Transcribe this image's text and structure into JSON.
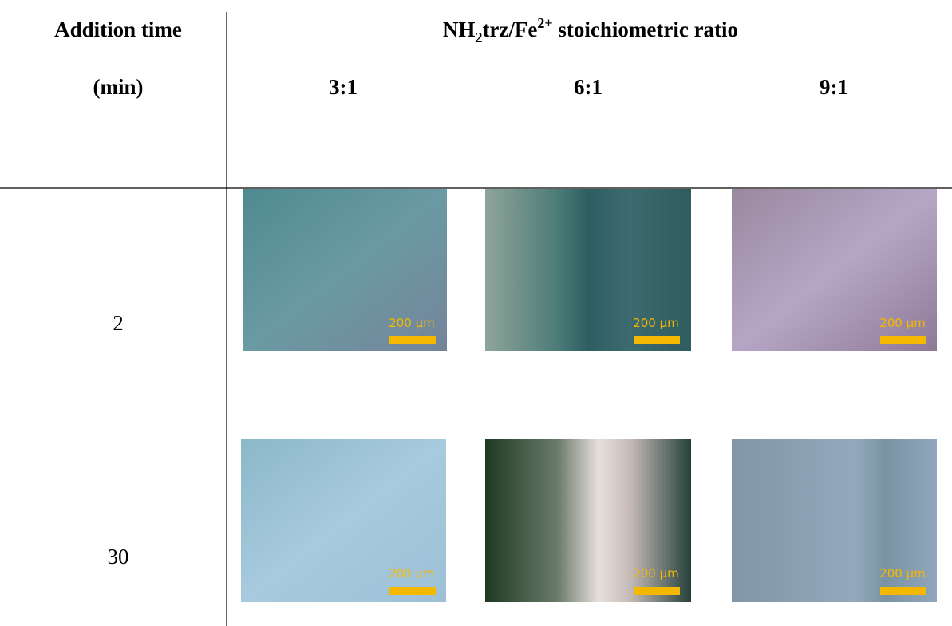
{
  "header": {
    "row_label": [
      "Addition time",
      "(min)"
    ],
    "title": [
      "NH",
      "2",
      "trz/Fe",
      "2+",
      " stoichiometric ratio"
    ],
    "columns": [
      "3:1",
      "6:1",
      "9:1"
    ]
  },
  "rows": [
    {
      "label": "2"
    },
    {
      "label": "30"
    }
  ],
  "scale_label": "200 µm"
}
